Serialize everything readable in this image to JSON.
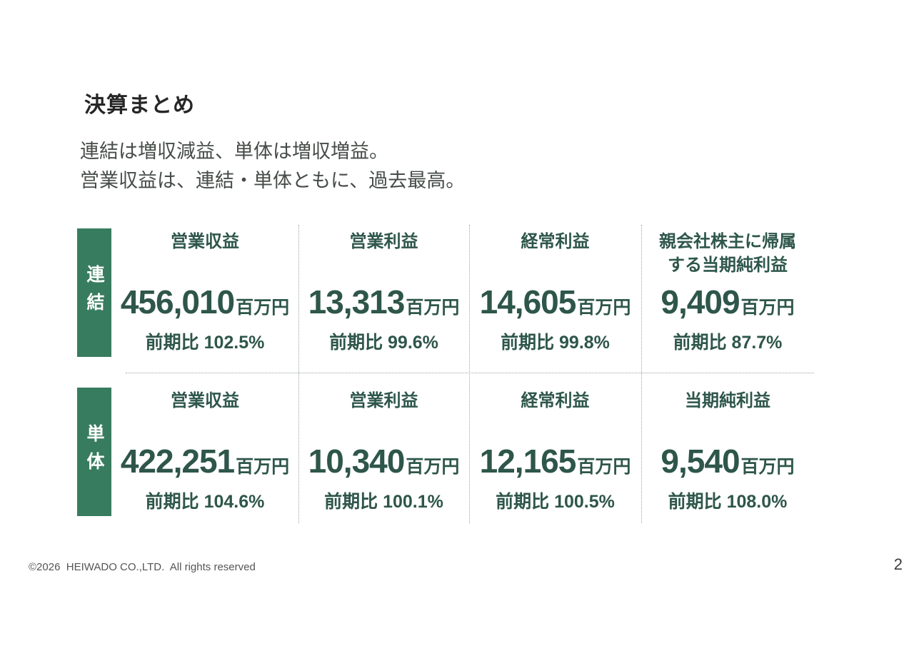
{
  "page": {
    "title": "決算まとめ",
    "subtitle_line1": "連結は増収減益、単体は増収増益。",
    "subtitle_line2": "営業収益は、連結・単体ともに、過去最高。",
    "footer": "©2026  HEIWADO CO.,LTD.  All rights reserved",
    "page_number": "2"
  },
  "colors": {
    "accent_green": "#377c5e",
    "text_green": "#2e564a"
  },
  "table": {
    "rows": [
      {
        "label": "連結",
        "cells": [
          {
            "header": "営業収益",
            "value": "456,010",
            "unit": "百万円",
            "yoy": "前期比 102.5%"
          },
          {
            "header": "営業利益",
            "value": "13,313",
            "unit": "百万円",
            "yoy": "前期比 99.6%"
          },
          {
            "header": "経常利益",
            "value": "14,605",
            "unit": "百万円",
            "yoy": "前期比 99.8%"
          },
          {
            "header": "親会社株主に帰属する当期純利益",
            "value": "9,409",
            "unit": "百万円",
            "yoy": "前期比 87.7%"
          }
        ]
      },
      {
        "label": "単体",
        "cells": [
          {
            "header": "営業収益",
            "value": "422,251",
            "unit": "百万円",
            "yoy": "前期比 104.6%"
          },
          {
            "header": "営業利益",
            "value": "10,340",
            "unit": "百万円",
            "yoy": "前期比 100.1%"
          },
          {
            "header": "経常利益",
            "value": "12,165",
            "unit": "百万円",
            "yoy": "前期比 100.5%"
          },
          {
            "header": "当期純利益",
            "value": "9,540",
            "unit": "百万円",
            "yoy": "前期比 108.0%"
          }
        ]
      }
    ]
  }
}
